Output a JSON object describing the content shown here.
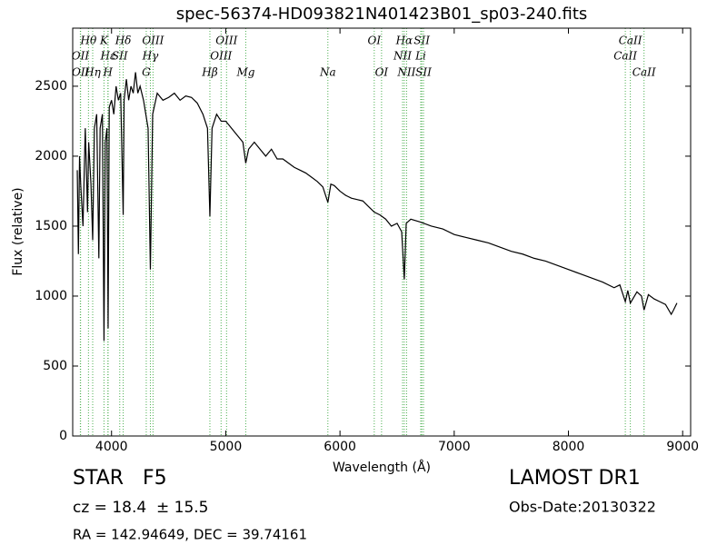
{
  "chart_data": {
    "type": "line",
    "title": "spec-56374-HD093821N401423B01_sp03-240.fits",
    "xlabel": "Wavelength (Å)",
    "ylabel": "Flux (relative)",
    "xlim": [
      3660,
      9070
    ],
    "ylim": [
      0,
      2915
    ],
    "xticks": [
      4000,
      5000,
      6000,
      7000,
      8000,
      9000
    ],
    "yticks": [
      0,
      500,
      1000,
      1500,
      2000,
      2500
    ],
    "color": "#000000",
    "line_color": "#4caf50",
    "x": [
      3700,
      3710,
      3720,
      3730,
      3750,
      3770,
      3790,
      3800,
      3820,
      3835,
      3850,
      3870,
      3889,
      3900,
      3920,
      3934,
      3945,
      3960,
      3970,
      3980,
      4000,
      4020,
      4040,
      4060,
      4080,
      4102,
      4110,
      4130,
      4150,
      4170,
      4190,
      4210,
      4230,
      4250,
      4280,
      4300,
      4320,
      4340,
      4360,
      4400,
      4450,
      4500,
      4550,
      4600,
      4650,
      4700,
      4750,
      4800,
      4840,
      4861,
      4880,
      4920,
      4960,
      5000,
      5050,
      5100,
      5150,
      5175,
      5200,
      5250,
      5300,
      5350,
      5400,
      5450,
      5500,
      5550,
      5600,
      5650,
      5700,
      5750,
      5800,
      5850,
      5894,
      5920,
      5950,
      6000,
      6050,
      6100,
      6150,
      6200,
      6250,
      6300,
      6350,
      6400,
      6450,
      6500,
      6540,
      6563,
      6580,
      6620,
      6700,
      6800,
      6900,
      7000,
      7100,
      7200,
      7300,
      7400,
      7500,
      7600,
      7700,
      7800,
      7900,
      8000,
      8100,
      8200,
      8300,
      8400,
      8450,
      8498,
      8520,
      8542,
      8600,
      8640,
      8662,
      8700,
      8750,
      8800,
      8850,
      8900,
      8920,
      8950
    ],
    "values": [
      1900,
      1300,
      2000,
      1800,
      1500,
      2200,
      1600,
      2100,
      1800,
      1400,
      2200,
      2300,
      1270,
      2200,
      2300,
      680,
      2100,
      2200,
      770,
      2350,
      2400,
      2300,
      2500,
      2400,
      2450,
      1580,
      2400,
      2550,
      2400,
      2500,
      2450,
      2600,
      2450,
      2500,
      2400,
      2300,
      2200,
      1190,
      2300,
      2450,
      2400,
      2420,
      2450,
      2400,
      2430,
      2420,
      2380,
      2300,
      2200,
      1570,
      2200,
      2300,
      2250,
      2250,
      2200,
      2150,
      2100,
      1950,
      2050,
      2100,
      2050,
      2000,
      2050,
      1980,
      1980,
      1950,
      1920,
      1900,
      1880,
      1850,
      1820,
      1780,
      1670,
      1800,
      1790,
      1750,
      1720,
      1700,
      1690,
      1680,
      1640,
      1600,
      1580,
      1550,
      1500,
      1520,
      1460,
      1120,
      1520,
      1550,
      1530,
      1500,
      1480,
      1440,
      1420,
      1400,
      1380,
      1350,
      1320,
      1300,
      1270,
      1250,
      1220,
      1190,
      1160,
      1130,
      1100,
      1060,
      1080,
      960,
      1040,
      950,
      1030,
      1000,
      900,
      1010,
      980,
      960,
      940,
      870,
      900,
      950
    ],
    "annotations": [
      [
        {
          "label": "Hθ",
          "x": 3798
        },
        {
          "label": "K",
          "x": 3934
        },
        {
          "label": "Hδ",
          "x": 4102
        },
        {
          "label": "OIII",
          "x": 4363
        },
        {
          "label": "OIII",
          "x": 5007
        },
        {
          "label": "OI",
          "x": 6300
        },
        {
          "label": "Hα",
          "x": 6563
        },
        {
          "label": "SII",
          "x": 6716
        },
        {
          "label": "CaII",
          "x": 8542
        }
      ],
      [
        {
          "label": "OII",
          "x": 3727
        },
        {
          "label": "Hε",
          "x": 3970
        },
        {
          "label": "SII",
          "x": 4072
        },
        {
          "label": "Hγ",
          "x": 4340
        },
        {
          "label": "OIII",
          "x": 4959
        },
        {
          "label": "NII",
          "x": 6548
        },
        {
          "label": "Li",
          "x": 6707
        },
        {
          "label": "CaII",
          "x": 8498
        }
      ],
      [
        {
          "label": "OII",
          "x": 3729
        },
        {
          "label": "Hη",
          "x": 3835
        },
        {
          "label": "H",
          "x": 3968
        },
        {
          "label": "G",
          "x": 4304
        },
        {
          "label": "Hβ",
          "x": 4861
        },
        {
          "label": "Mg",
          "x": 5175
        },
        {
          "label": "Na",
          "x": 5894
        },
        {
          "label": "OI",
          "x": 6364
        },
        {
          "label": "NII",
          "x": 6583
        },
        {
          "label": "SII",
          "x": 6731
        },
        {
          "label": "CaII",
          "x": 8662
        }
      ]
    ],
    "footer": {
      "object": "STAR   F5",
      "survey": "LAMOST DR1",
      "redshift": "cz = 18.4  ± 15.5",
      "date": "Obs-Date:20130322",
      "coords": "RA = 142.94649, DEC = 39.74161"
    }
  }
}
